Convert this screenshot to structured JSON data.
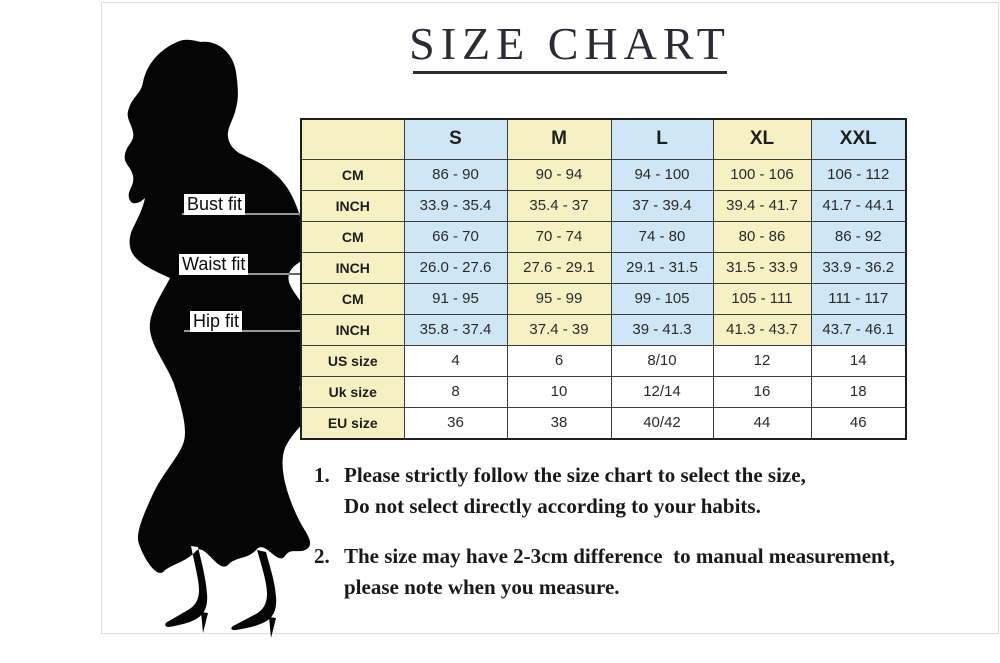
{
  "title": "SIZE CHART",
  "figure": {
    "name": "woman-silhouette"
  },
  "measurement_labels": [
    {
      "label": "Bust fit"
    },
    {
      "label": "Waist fit"
    },
    {
      "label": "Hip fit"
    }
  ],
  "size_table": {
    "columns": [
      "",
      "S",
      "M",
      "L",
      "XL",
      "XXL"
    ],
    "rows": [
      {
        "label": "CM",
        "values": [
          "86 - 90",
          "90 - 94",
          "94 - 100",
          "100 - 106",
          "106 - 112"
        ]
      },
      {
        "label": "INCH",
        "values": [
          "33.9 - 35.4",
          "35.4 - 37",
          "37 - 39.4",
          "39.4 - 41.7",
          "41.7 - 44.1"
        ]
      },
      {
        "label": "CM",
        "values": [
          "66 - 70",
          "70 - 74",
          "74 - 80",
          "80 - 86",
          "86 - 92"
        ]
      },
      {
        "label": "INCH",
        "values": [
          "26.0 - 27.6",
          "27.6 - 29.1",
          "29.1 - 31.5",
          "31.5 - 33.9",
          "33.9 - 36.2"
        ]
      },
      {
        "label": "CM",
        "values": [
          "91 - 95",
          "95 - 99",
          "99 - 105",
          "105 - 111",
          "111 - 117"
        ]
      },
      {
        "label": "INCH",
        "values": [
          "35.8 - 37.4",
          "37.4 - 39",
          "39 - 41.3",
          "41.3 - 43.7",
          "43.7 - 46.1"
        ]
      },
      {
        "label": "US size",
        "values": [
          "4",
          "6",
          "8/10",
          "12",
          "14"
        ]
      },
      {
        "label": "Uk size",
        "values": [
          "8",
          "10",
          "12/14",
          "16",
          "18"
        ]
      },
      {
        "label": "EU size",
        "values": [
          "36",
          "38",
          "40/42",
          "44",
          "46"
        ]
      }
    ]
  },
  "notes": [
    {
      "number": "1.",
      "line1": "Please strictly follow the size chart to select the size,",
      "line2": "Do not select directly according to your habits."
    },
    {
      "number": "2.",
      "line1": "The size may have 2-3cm difference  to manual measurement,",
      "line2": "please note when you measure."
    }
  ],
  "colors": {
    "yellow_cell": "#f6f1c3",
    "blue_cell": "#cfe6f6",
    "white_cell": "#ffffff",
    "table_border": "#1f1f1f",
    "silhouette": "#050505"
  }
}
